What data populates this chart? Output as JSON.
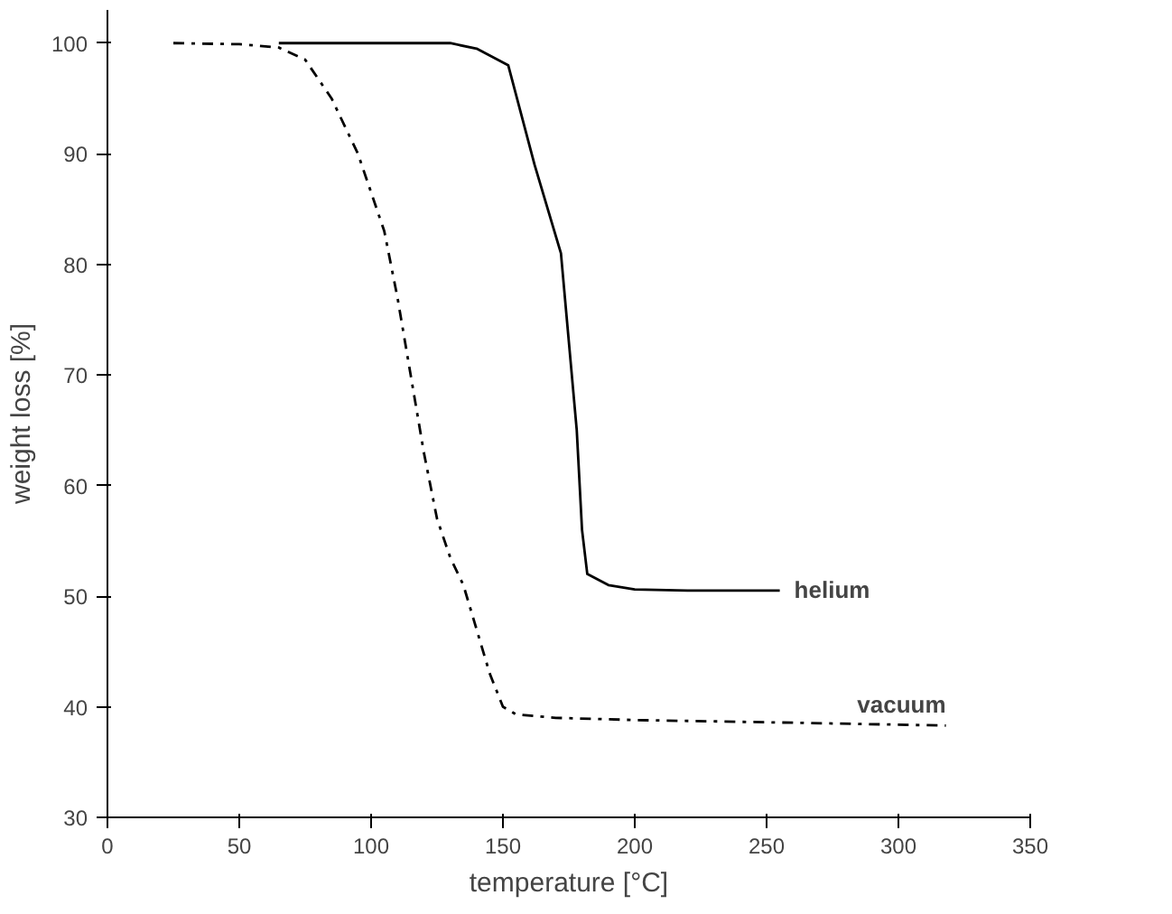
{
  "chart_data": {
    "type": "line",
    "xlabel": "temperature [°C]",
    "ylabel": "weight loss [%]",
    "xlim": [
      0,
      350
    ],
    "ylim": [
      30,
      103
    ],
    "xticks": [
      0,
      50,
      100,
      150,
      200,
      250,
      300,
      350
    ],
    "yticks": [
      30,
      40,
      50,
      60,
      70,
      80,
      90,
      100
    ],
    "grid": false,
    "marker": "none",
    "series": [
      {
        "name": "helium",
        "color": "#000000",
        "line_style": "solid",
        "x": [
          65,
          100,
          130,
          140,
          152,
          162,
          172,
          178,
          180,
          182,
          190,
          200,
          220,
          255
        ],
        "values": [
          100,
          100,
          100,
          99.5,
          98,
          89,
          81,
          65,
          56,
          52,
          51,
          50.6,
          50.5,
          50.5
        ]
      },
      {
        "name": "vacuum",
        "color": "#000000",
        "line_style": "dashdot",
        "x": [
          25,
          50,
          65,
          75,
          85,
          95,
          105,
          110,
          115,
          120,
          125,
          130,
          135,
          140,
          145,
          150,
          155,
          170,
          200,
          250,
          318
        ],
        "values": [
          100,
          99.9,
          99.6,
          98.5,
          95,
          90,
          83,
          77,
          70,
          63,
          57,
          53.5,
          51,
          47,
          43,
          40,
          39.3,
          39,
          38.8,
          38.6,
          38.3
        ]
      }
    ]
  }
}
